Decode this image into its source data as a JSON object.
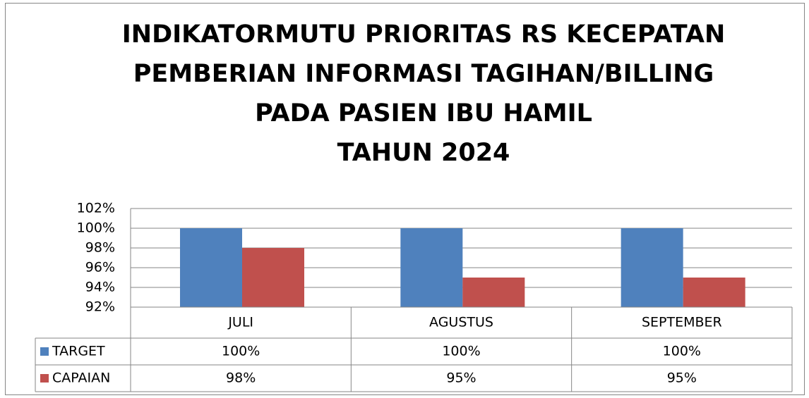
{
  "chart_data": {
    "type": "bar",
    "title": [
      "INDIKATORMUTU PRIORITAS RS KECEPATAN",
      "PEMBERIAN INFORMASI TAGIHAN/BILLING",
      "PADA PASIEN IBU HAMIL",
      "TAHUN 2024"
    ],
    "categories": [
      "JULI",
      "AGUSTUS",
      "SEPTEMBER"
    ],
    "series": [
      {
        "name": "TARGET",
        "color": "#4f81bd",
        "values": [
          100,
          100,
          100
        ],
        "value_labels": [
          "100%",
          "100%",
          "100%"
        ]
      },
      {
        "name": "CAPAIAN",
        "color": "#c0504d",
        "values": [
          98,
          95,
          95
        ],
        "value_labels": [
          "98%",
          "95%",
          "95%"
        ]
      }
    ],
    "ylim": [
      92,
      102
    ],
    "yticks": [
      {
        "value": 92,
        "label": "92%"
      },
      {
        "value": 94,
        "label": "94%"
      },
      {
        "value": 96,
        "label": "96%"
      },
      {
        "value": 98,
        "label": "98%"
      },
      {
        "value": 100,
        "label": "100%"
      },
      {
        "value": 102,
        "label": "102%"
      }
    ],
    "grid": true
  }
}
